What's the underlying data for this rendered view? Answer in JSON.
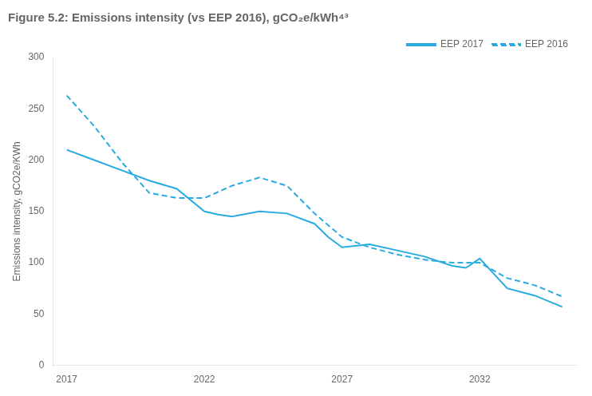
{
  "chart_data": {
    "type": "line",
    "title": "Figure 5.2: Emissions intensity (vs EEP 2016), gCO₂e/kWh⁴³",
    "y_label": "Emissions intensity, gCO2e/KWh",
    "xlim": [
      2016.5,
      2035.5
    ],
    "xticks": [
      2017,
      2022,
      2027,
      2032
    ],
    "ylim": [
      0,
      300
    ],
    "yticks": [
      0,
      50,
      100,
      150,
      200,
      250,
      300
    ],
    "grid": false,
    "legend": "upper right",
    "series": [
      {
        "name": "EEP 2017",
        "color": "#29ABE2",
        "line_style": "solid",
        "x": [
          2017,
          2018,
          2019,
          2020,
          2021,
          2022,
          2022.5,
          2023,
          2024,
          2025,
          2026,
          2026.5,
          2027,
          2028,
          2029,
          2030,
          2031,
          2031.5,
          2032,
          2033,
          2034,
          2035
        ],
        "values": [
          210,
          200,
          190,
          180,
          172,
          150,
          147,
          145,
          150,
          148,
          138,
          125,
          115,
          118,
          112,
          106,
          97,
          95,
          104,
          75,
          68,
          57
        ]
      },
      {
        "name": "EEP 2016",
        "color": "#29ABE2",
        "line_style": "dashed",
        "x": [
          2017,
          2017.5,
          2018,
          2019,
          2020,
          2021,
          2022,
          2023,
          2024,
          2025,
          2026,
          2027,
          2028,
          2029,
          2030,
          2031,
          2032,
          2033,
          2034,
          2035
        ],
        "values": [
          263,
          248,
          233,
          198,
          168,
          163,
          163,
          175,
          183,
          175,
          148,
          125,
          115,
          108,
          103,
          100,
          100,
          85,
          78,
          67
        ]
      }
    ]
  }
}
